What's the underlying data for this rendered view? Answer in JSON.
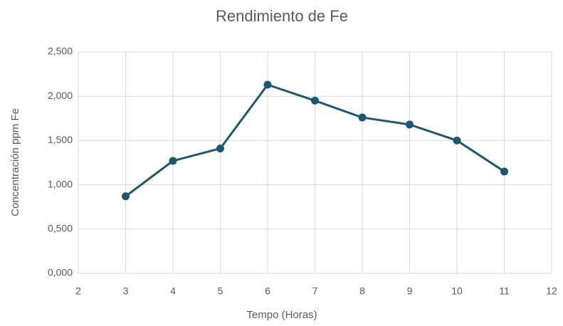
{
  "chart_data": {
    "type": "line",
    "title": "Rendimiento de Fe",
    "x_label": "Tempo (Horas)",
    "y_label": "Concentración ppm Fe",
    "x": [
      3,
      4,
      5,
      6,
      7,
      8,
      9,
      10,
      11
    ],
    "values": [
      0.87,
      1.27,
      1.41,
      2.13,
      1.95,
      1.76,
      1.68,
      1.5,
      1.15
    ],
    "color": "#1d5872",
    "xlim": [
      2,
      12
    ],
    "xticks": [
      2,
      3,
      4,
      5,
      6,
      7,
      8,
      9,
      10,
      11,
      12
    ],
    "ylim": [
      0,
      2.5
    ],
    "yticks": [
      {
        "value": 0,
        "label": "0,000"
      },
      {
        "value": 0.5,
        "label": "0,500"
      },
      {
        "value": 1,
        "label": "1,000"
      },
      {
        "value": 1.5,
        "label": "1,500"
      },
      {
        "value": 2,
        "label": "2,000"
      },
      {
        "value": 2.5,
        "label": "2,500"
      }
    ],
    "grid": true
  }
}
